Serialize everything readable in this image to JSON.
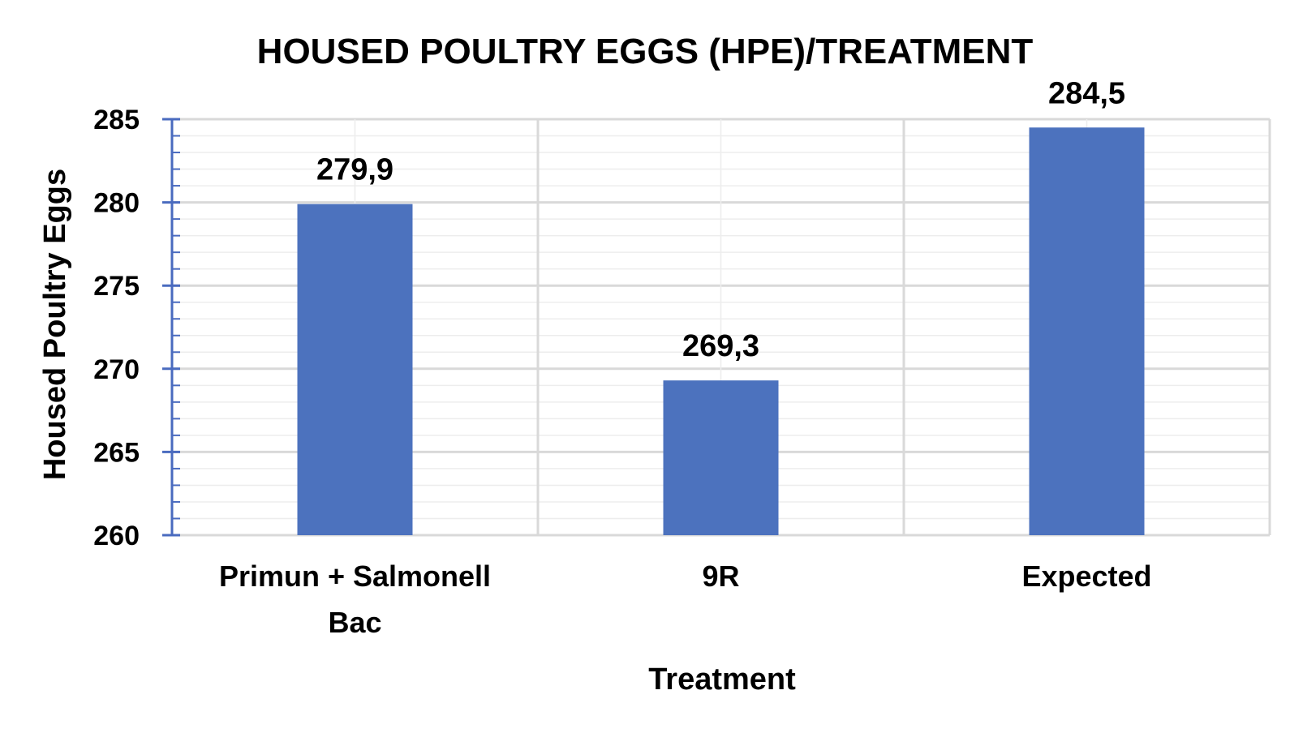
{
  "chart_data": {
    "type": "bar",
    "title": "HOUSED POULTRY EGGS (HPE)/TREATMENT",
    "xlabel": "Treatment",
    "ylabel": "Housed Poultry Eggs",
    "categories": [
      [
        "Primun + Salmonell",
        "Bac"
      ],
      [
        "9R"
      ],
      [
        "Expected"
      ]
    ],
    "values": [
      279.9,
      269.3,
      284.5
    ],
    "data_labels": [
      "279,9",
      "269,3",
      "284,5"
    ],
    "ylim": [
      260,
      285
    ],
    "y_ticks": [
      260,
      265,
      270,
      275,
      280,
      285
    ],
    "grid": true,
    "legend": "none",
    "bar_color": "#4c72be",
    "axis_color": "#4a6bbf",
    "grid_color": "#d9d9d9"
  }
}
